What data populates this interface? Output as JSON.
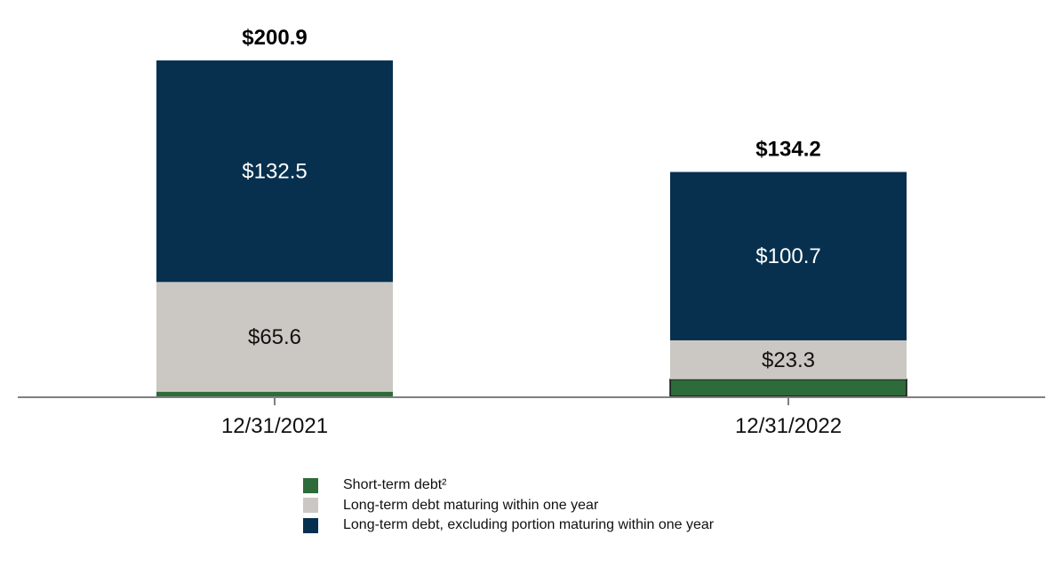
{
  "chart_data": {
    "type": "bar",
    "stacked": true,
    "categories": [
      "12/31/2021",
      "12/31/2022"
    ],
    "series": [
      {
        "name": "Short-term debt²",
        "values": [
          2.8,
          10.2
        ],
        "color": "#2e6b3a",
        "label_color": "#ffffff",
        "show_labels": false
      },
      {
        "name": "Long-term debt maturing within one year",
        "values": [
          65.6,
          23.3
        ],
        "labels": [
          "$65.6",
          "$23.3"
        ],
        "color": "#cbc8c3",
        "label_color": "#111111",
        "show_labels": true
      },
      {
        "name": "Long-term debt, excluding portion maturing within one year",
        "values": [
          132.5,
          100.7
        ],
        "labels": [
          "$132.5",
          "$100.7"
        ],
        "color": "#07304f",
        "label_color": "#ffffff",
        "show_labels": true
      }
    ],
    "totals": [
      200.9,
      134.2
    ],
    "total_labels": [
      "$200.9",
      "$134.2"
    ],
    "ylim": [
      0,
      200.9
    ],
    "grid": false,
    "axis_color": "#808080",
    "legend_position": "bottom-center",
    "title": "",
    "xlabel": "",
    "ylabel": ""
  }
}
